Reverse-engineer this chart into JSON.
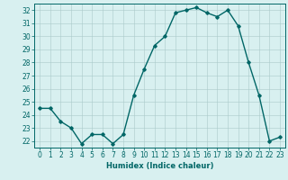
{
  "x": [
    0,
    1,
    2,
    3,
    4,
    5,
    6,
    7,
    8,
    9,
    10,
    11,
    12,
    13,
    14,
    15,
    16,
    17,
    18,
    19,
    20,
    21,
    22,
    23
  ],
  "y": [
    24.5,
    24.5,
    23.5,
    23.0,
    21.8,
    22.5,
    22.5,
    21.8,
    22.5,
    25.5,
    27.5,
    29.3,
    30.0,
    31.8,
    32.0,
    32.2,
    31.8,
    31.5,
    32.0,
    30.8,
    28.0,
    25.5,
    22.0,
    22.3
  ],
  "line_color": "#006666",
  "marker": "D",
  "marker_size": 1.8,
  "bg_color": "#d8f0f0",
  "grid_color": "#aacaca",
  "xlabel": "Humidex (Indice chaleur)",
  "xlim": [
    -0.5,
    23.5
  ],
  "ylim": [
    21.5,
    32.5
  ],
  "yticks": [
    22,
    23,
    24,
    25,
    26,
    27,
    28,
    29,
    30,
    31,
    32
  ],
  "xticks": [
    0,
    1,
    2,
    3,
    4,
    5,
    6,
    7,
    8,
    9,
    10,
    11,
    12,
    13,
    14,
    15,
    16,
    17,
    18,
    19,
    20,
    21,
    22,
    23
  ],
  "xlabel_fontsize": 6.0,
  "tick_fontsize": 5.5,
  "linewidth": 1.0
}
